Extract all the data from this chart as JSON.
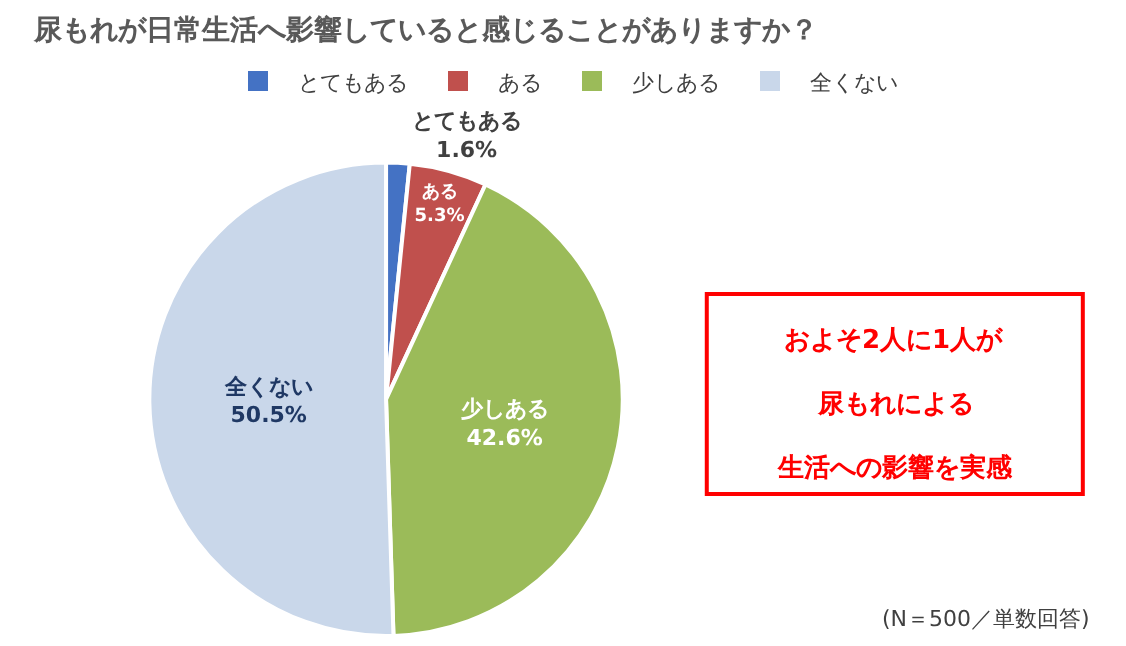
{
  "chart_data": {
    "type": "pie",
    "title": "尿もれが日常生活へ影響していると感じることがありますか？",
    "categories": [
      "とてもある",
      "ある",
      "少しある",
      "全くない"
    ],
    "values": [
      1.6,
      5.3,
      42.6,
      50.5
    ],
    "colors": [
      "#4472c4",
      "#c0504d",
      "#9bbb59",
      "#c9d7ea"
    ],
    "value_labels": [
      "1.6%",
      "5.3%",
      "42.6%",
      "50.5%"
    ],
    "legend": "top",
    "annotations": [
      "およそ2人に1人が",
      "尿もれによる",
      "生活への影響を実感",
      "(N＝500／単数回答)"
    ]
  }
}
